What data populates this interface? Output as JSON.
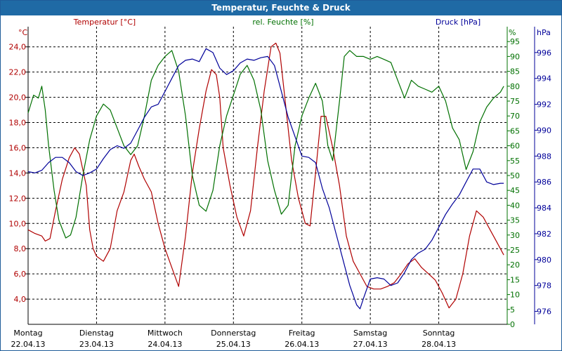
{
  "window": {
    "title": "Temperatur, Feuchte & Druck"
  },
  "chart_data": {
    "type": "line",
    "title": "Temperatur, Feuchte & Druck",
    "x_categories": [
      {
        "day": "Montag",
        "date": "22.04.13"
      },
      {
        "day": "Dienstag",
        "date": "23.04.13"
      },
      {
        "day": "Mittwoch",
        "date": "24.04.13"
      },
      {
        "day": "Donnerstag",
        "date": "25.04.13"
      },
      {
        "day": "Freitag",
        "date": "26.04.13"
      },
      {
        "day": "Samstag",
        "date": "27.04.13"
      },
      {
        "day": "Sonntag",
        "date": "28.04.13"
      }
    ],
    "grid": true,
    "axes": {
      "temperature": {
        "label": "Temperatur [°C]",
        "unit": "°C",
        "range": [
          2,
          25.6
        ],
        "ticks": [
          "4,0",
          "6,0",
          "8,0",
          "10,0",
          "12,0",
          "14,0",
          "16,0",
          "18,0",
          "20,0",
          "22,0",
          "24,0"
        ],
        "color": "#b00000"
      },
      "humidity": {
        "label": "rel. Feuchte [%]",
        "unit": "%",
        "range": [
          0,
          100
        ],
        "ticks": [
          "0",
          "5",
          "10",
          "15",
          "20",
          "25",
          "30",
          "35",
          "40",
          "45",
          "50",
          "55",
          "60",
          "65",
          "70",
          "75",
          "80",
          "85",
          "90",
          "95"
        ],
        "color": "#007000"
      },
      "pressure": {
        "label": "Druck [hPa]",
        "unit": "hPa",
        "range": [
          975,
          998
        ],
        "ticks": [
          "976",
          "978",
          "980",
          "982",
          "984",
          "986",
          "988",
          "990",
          "992",
          "994",
          "996"
        ],
        "color": "#000099"
      }
    },
    "series": [
      {
        "name": "Temperatur [°C]",
        "color": "#b00000",
        "points": [
          [
            0.0,
            9.5
          ],
          [
            0.1,
            9.2
          ],
          [
            0.2,
            9.0
          ],
          [
            0.25,
            8.6
          ],
          [
            0.32,
            8.8
          ],
          [
            0.4,
            11.0
          ],
          [
            0.5,
            13.5
          ],
          [
            0.6,
            15.2
          ],
          [
            0.68,
            16.0
          ],
          [
            0.75,
            15.5
          ],
          [
            0.85,
            13.0
          ],
          [
            0.9,
            9.5
          ],
          [
            0.95,
            8.0
          ],
          [
            1.0,
            7.4
          ],
          [
            1.1,
            7.0
          ],
          [
            1.2,
            8.0
          ],
          [
            1.3,
            11.0
          ],
          [
            1.4,
            12.5
          ],
          [
            1.5,
            15.0
          ],
          [
            1.55,
            15.5
          ],
          [
            1.62,
            14.5
          ],
          [
            1.7,
            13.5
          ],
          [
            1.8,
            12.5
          ],
          [
            1.9,
            10.0
          ],
          [
            2.0,
            8.0
          ],
          [
            2.1,
            6.5
          ],
          [
            2.2,
            5.0
          ],
          [
            2.3,
            9.0
          ],
          [
            2.4,
            14.0
          ],
          [
            2.5,
            17.5
          ],
          [
            2.6,
            20.5
          ],
          [
            2.68,
            22.2
          ],
          [
            2.75,
            21.8
          ],
          [
            2.8,
            20.0
          ],
          [
            2.85,
            16.0
          ],
          [
            2.95,
            13.0
          ],
          [
            3.05,
            10.5
          ],
          [
            3.15,
            9.0
          ],
          [
            3.25,
            11.0
          ],
          [
            3.35,
            16.0
          ],
          [
            3.45,
            20.5
          ],
          [
            3.55,
            24.0
          ],
          [
            3.62,
            24.3
          ],
          [
            3.68,
            23.5
          ],
          [
            3.75,
            20.0
          ],
          [
            3.85,
            15.0
          ],
          [
            3.95,
            12.0
          ],
          [
            4.05,
            10.0
          ],
          [
            4.12,
            9.8
          ],
          [
            4.2,
            14.0
          ],
          [
            4.28,
            18.5
          ],
          [
            4.35,
            18.5
          ],
          [
            4.45,
            16.0
          ],
          [
            4.55,
            13.0
          ],
          [
            4.65,
            9.0
          ],
          [
            4.75,
            7.0
          ],
          [
            4.85,
            6.0
          ],
          [
            4.95,
            5.0
          ],
          [
            5.05,
            4.8
          ],
          [
            5.15,
            4.8
          ],
          [
            5.25,
            5.0
          ],
          [
            5.35,
            5.3
          ],
          [
            5.45,
            6.0
          ],
          [
            5.55,
            6.8
          ],
          [
            5.65,
            7.2
          ],
          [
            5.75,
            6.5
          ],
          [
            5.85,
            6.0
          ],
          [
            5.95,
            5.5
          ],
          [
            6.05,
            4.5
          ],
          [
            6.15,
            3.3
          ],
          [
            6.25,
            4.0
          ],
          [
            6.35,
            6.0
          ],
          [
            6.45,
            9.0
          ],
          [
            6.55,
            11.0
          ],
          [
            6.65,
            10.5
          ],
          [
            6.75,
            9.5
          ],
          [
            6.85,
            8.5
          ],
          [
            6.95,
            7.5
          ]
        ]
      },
      {
        "name": "rel. Feuchte [%]",
        "color": "#007000",
        "points": [
          [
            0.0,
            71
          ],
          [
            0.08,
            77
          ],
          [
            0.15,
            76
          ],
          [
            0.2,
            80
          ],
          [
            0.25,
            72
          ],
          [
            0.3,
            60
          ],
          [
            0.38,
            45
          ],
          [
            0.45,
            35
          ],
          [
            0.55,
            29
          ],
          [
            0.62,
            30
          ],
          [
            0.7,
            36
          ],
          [
            0.8,
            50
          ],
          [
            0.9,
            62
          ],
          [
            1.0,
            70
          ],
          [
            1.1,
            74
          ],
          [
            1.2,
            72
          ],
          [
            1.3,
            66
          ],
          [
            1.4,
            60
          ],
          [
            1.5,
            57
          ],
          [
            1.6,
            60
          ],
          [
            1.7,
            70
          ],
          [
            1.8,
            82
          ],
          [
            1.9,
            87
          ],
          [
            2.0,
            90
          ],
          [
            2.1,
            92
          ],
          [
            2.2,
            85
          ],
          [
            2.3,
            70
          ],
          [
            2.4,
            50
          ],
          [
            2.5,
            40
          ],
          [
            2.6,
            38
          ],
          [
            2.7,
            45
          ],
          [
            2.8,
            60
          ],
          [
            2.9,
            70
          ],
          [
            3.0,
            77
          ],
          [
            3.1,
            84
          ],
          [
            3.2,
            87
          ],
          [
            3.3,
            82
          ],
          [
            3.4,
            72
          ],
          [
            3.5,
            55
          ],
          [
            3.6,
            45
          ],
          [
            3.7,
            37
          ],
          [
            3.8,
            40
          ],
          [
            3.9,
            60
          ],
          [
            4.0,
            70
          ],
          [
            4.1,
            76
          ],
          [
            4.2,
            81
          ],
          [
            4.3,
            75
          ],
          [
            4.38,
            60
          ],
          [
            4.45,
            55
          ],
          [
            4.55,
            75
          ],
          [
            4.62,
            90
          ],
          [
            4.7,
            92
          ],
          [
            4.8,
            90
          ],
          [
            4.9,
            90
          ],
          [
            5.0,
            89
          ],
          [
            5.1,
            90
          ],
          [
            5.2,
            89
          ],
          [
            5.3,
            88
          ],
          [
            5.4,
            82
          ],
          [
            5.5,
            76
          ],
          [
            5.6,
            82
          ],
          [
            5.7,
            80
          ],
          [
            5.8,
            79
          ],
          [
            5.9,
            78
          ],
          [
            6.0,
            80
          ],
          [
            6.1,
            75
          ],
          [
            6.2,
            66
          ],
          [
            6.3,
            62
          ],
          [
            6.4,
            52
          ],
          [
            6.5,
            58
          ],
          [
            6.6,
            68
          ],
          [
            6.7,
            73
          ],
          [
            6.8,
            76
          ],
          [
            6.9,
            78
          ],
          [
            6.95,
            80
          ]
        ]
      },
      {
        "name": "Druck [hPa]",
        "color": "#000099",
        "points": [
          [
            0.0,
            986.8
          ],
          [
            0.1,
            986.7
          ],
          [
            0.2,
            986.9
          ],
          [
            0.3,
            987.5
          ],
          [
            0.4,
            987.9
          ],
          [
            0.5,
            987.9
          ],
          [
            0.6,
            987.5
          ],
          [
            0.7,
            986.8
          ],
          [
            0.8,
            986.5
          ],
          [
            0.9,
            986.7
          ],
          [
            1.0,
            987.0
          ],
          [
            1.1,
            987.8
          ],
          [
            1.2,
            988.5
          ],
          [
            1.3,
            988.8
          ],
          [
            1.4,
            988.6
          ],
          [
            1.5,
            989.0
          ],
          [
            1.6,
            990.0
          ],
          [
            1.7,
            991.0
          ],
          [
            1.8,
            991.8
          ],
          [
            1.9,
            992.0
          ],
          [
            2.0,
            993.0
          ],
          [
            2.1,
            994.0
          ],
          [
            2.2,
            995.0
          ],
          [
            2.3,
            995.4
          ],
          [
            2.4,
            995.5
          ],
          [
            2.5,
            995.3
          ],
          [
            2.6,
            996.3
          ],
          [
            2.7,
            996.0
          ],
          [
            2.8,
            994.8
          ],
          [
            2.9,
            994.3
          ],
          [
            3.0,
            994.6
          ],
          [
            3.1,
            995.2
          ],
          [
            3.2,
            995.5
          ],
          [
            3.3,
            995.4
          ],
          [
            3.4,
            995.6
          ],
          [
            3.5,
            995.7
          ],
          [
            3.6,
            995.0
          ],
          [
            3.7,
            993.0
          ],
          [
            3.8,
            991.0
          ],
          [
            3.9,
            989.5
          ],
          [
            4.0,
            988.0
          ],
          [
            4.1,
            987.9
          ],
          [
            4.2,
            987.5
          ],
          [
            4.3,
            985.5
          ],
          [
            4.4,
            984.0
          ],
          [
            4.5,
            982.0
          ],
          [
            4.6,
            980.0
          ],
          [
            4.7,
            978.0
          ],
          [
            4.8,
            976.5
          ],
          [
            4.85,
            976.2
          ],
          [
            4.9,
            977.0
          ],
          [
            5.0,
            978.5
          ],
          [
            5.1,
            978.6
          ],
          [
            5.2,
            978.5
          ],
          [
            5.3,
            978.0
          ],
          [
            5.4,
            978.2
          ],
          [
            5.5,
            979.0
          ],
          [
            5.6,
            980.0
          ],
          [
            5.7,
            980.5
          ],
          [
            5.8,
            980.8
          ],
          [
            5.9,
            981.5
          ],
          [
            6.0,
            982.5
          ],
          [
            6.1,
            983.5
          ],
          [
            6.2,
            984.3
          ],
          [
            6.3,
            985.0
          ],
          [
            6.4,
            986.0
          ],
          [
            6.5,
            987.0
          ],
          [
            6.6,
            987.0
          ],
          [
            6.7,
            986.0
          ],
          [
            6.8,
            985.8
          ],
          [
            6.9,
            985.9
          ],
          [
            6.95,
            985.9
          ]
        ]
      }
    ]
  }
}
